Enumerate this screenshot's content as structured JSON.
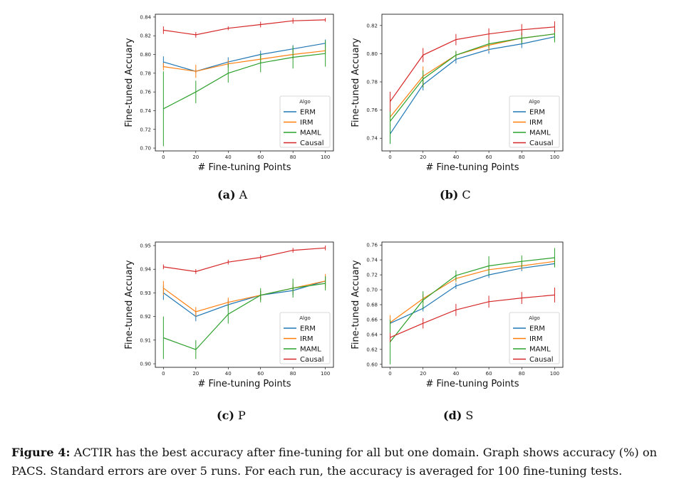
{
  "series_colors": {
    "ERM": "#1f77b4",
    "IRM": "#ff7f0e",
    "MAML": "#2ca02c",
    "Causal": "#d62728"
  },
  "chart_data": [
    {
      "id": "A",
      "type": "line",
      "xlabel": "# Fine-tuning Points",
      "ylabel": "Fine-tuned Accuary",
      "x": [
        0,
        20,
        40,
        60,
        80,
        100
      ],
      "xlim": [
        -5,
        105
      ],
      "ylim": [
        0.697,
        0.843
      ],
      "xticks": [
        0,
        20,
        40,
        60,
        80,
        100
      ],
      "yticks": [
        0.7,
        0.72,
        0.74,
        0.76,
        0.78,
        0.8,
        0.82,
        0.84
      ],
      "yticklabels": [
        "0.70",
        "0.72",
        "0.74",
        "0.76",
        "0.78",
        "0.80",
        "0.82",
        "0.84"
      ],
      "legend": {
        "title": "Algo",
        "position": "lower-right"
      },
      "series": [
        {
          "name": "ERM",
          "values": [
            0.792,
            0.782,
            0.792,
            0.8,
            0.806,
            0.812
          ],
          "err": [
            0.006,
            0.002,
            0.005,
            0.004,
            0.004,
            0.004
          ]
        },
        {
          "name": "IRM",
          "values": [
            0.787,
            0.782,
            0.79,
            0.795,
            0.8,
            0.804
          ],
          "err": [
            0.004,
            0.007,
            0.004,
            0.004,
            0.005,
            0.004
          ]
        },
        {
          "name": "MAML",
          "values": [
            0.742,
            0.76,
            0.78,
            0.791,
            0.797,
            0.801
          ],
          "err": [
            0.04,
            0.012,
            0.01,
            0.01,
            0.012,
            0.014
          ]
        },
        {
          "name": "Causal",
          "values": [
            0.826,
            0.821,
            0.828,
            0.832,
            0.836,
            0.837
          ],
          "err": [
            0.004,
            0.003,
            0.002,
            0.003,
            0.003,
            0.002
          ]
        }
      ]
    },
    {
      "id": "C",
      "type": "line",
      "xlabel": "# Fine-tuning Points",
      "ylabel": "Fine-tuned Accuary",
      "x": [
        0,
        20,
        40,
        60,
        80,
        100
      ],
      "xlim": [
        -5,
        105
      ],
      "ylim": [
        0.731,
        0.828
      ],
      "xticks": [
        0,
        20,
        40,
        60,
        80,
        100
      ],
      "yticks": [
        0.74,
        0.76,
        0.78,
        0.8,
        0.82
      ],
      "yticklabels": [
        "0.74",
        "0.76",
        "0.78",
        "0.80",
        "0.82"
      ],
      "legend": {
        "title": "Algo",
        "position": "lower-right"
      },
      "series": [
        {
          "name": "ERM",
          "values": [
            0.743,
            0.778,
            0.796,
            0.803,
            0.807,
            0.812
          ],
          "err": [
            0.007,
            0.004,
            0.003,
            0.003,
            0.003,
            0.003
          ]
        },
        {
          "name": "IRM",
          "values": [
            0.755,
            0.784,
            0.799,
            0.806,
            0.811,
            0.814
          ],
          "err": [
            0.006,
            0.007,
            0.003,
            0.004,
            0.003,
            0.004
          ]
        },
        {
          "name": "MAML",
          "values": [
            0.752,
            0.782,
            0.799,
            0.807,
            0.811,
            0.814
          ],
          "err": [
            0.016,
            0.006,
            0.003,
            0.003,
            0.004,
            0.006
          ]
        },
        {
          "name": "Causal",
          "values": [
            0.766,
            0.799,
            0.81,
            0.814,
            0.817,
            0.819
          ],
          "err": [
            0.007,
            0.005,
            0.004,
            0.004,
            0.004,
            0.004
          ]
        }
      ]
    },
    {
      "id": "P",
      "type": "line",
      "xlabel": "# Fine-tuning Points",
      "ylabel": "Fine-tuned Accuary",
      "x": [
        0,
        20,
        40,
        60,
        80,
        100
      ],
      "xlim": [
        -5,
        105
      ],
      "ylim": [
        0.8985,
        0.9515
      ],
      "xticks": [
        0,
        20,
        40,
        60,
        80,
        100
      ],
      "yticks": [
        0.9,
        0.91,
        0.92,
        0.93,
        0.94,
        0.95
      ],
      "yticklabels": [
        "0.90",
        "0.91",
        "0.92",
        "0.93",
        "0.94",
        "0.95"
      ],
      "legend": {
        "title": "Algo",
        "position": "lower-right"
      },
      "series": [
        {
          "name": "ERM",
          "values": [
            0.93,
            0.92,
            0.925,
            0.929,
            0.931,
            0.935
          ],
          "err": [
            0.003,
            0.002,
            0.002,
            0.002,
            0.002,
            0.002
          ]
        },
        {
          "name": "IRM",
          "values": [
            0.932,
            0.922,
            0.926,
            0.929,
            0.932,
            0.935
          ],
          "err": [
            0.003,
            0.002,
            0.002,
            0.002,
            0.002,
            0.003
          ]
        },
        {
          "name": "MAML",
          "values": [
            0.911,
            0.906,
            0.921,
            0.929,
            0.932,
            0.934
          ],
          "err": [
            0.009,
            0.004,
            0.004,
            0.003,
            0.004,
            0.003
          ]
        },
        {
          "name": "Causal",
          "values": [
            0.941,
            0.939,
            0.943,
            0.945,
            0.948,
            0.949
          ],
          "err": [
            0.001,
            0.001,
            0.001,
            0.001,
            0.001,
            0.001
          ]
        }
      ]
    },
    {
      "id": "S",
      "type": "line",
      "xlabel": "# Fine-tuning Points",
      "ylabel": "Fine-tuned Accuary",
      "x": [
        0,
        20,
        40,
        60,
        80,
        100
      ],
      "xlim": [
        -5,
        105
      ],
      "ylim": [
        0.596,
        0.764
      ],
      "xticks": [
        0,
        20,
        40,
        60,
        80,
        100
      ],
      "yticks": [
        0.6,
        0.62,
        0.64,
        0.66,
        0.68,
        0.7,
        0.72,
        0.74,
        0.76
      ],
      "yticklabels": [
        "0.60",
        "0.62",
        "0.64",
        "0.66",
        "0.68",
        "0.70",
        "0.72",
        "0.74",
        "0.76"
      ],
      "legend": {
        "title": "Algo",
        "position": "lower-right"
      },
      "series": [
        {
          "name": "ERM",
          "values": [
            0.655,
            0.675,
            0.705,
            0.72,
            0.729,
            0.735
          ],
          "err": [
            0.004,
            0.004,
            0.004,
            0.004,
            0.004,
            0.004
          ]
        },
        {
          "name": "IRM",
          "values": [
            0.656,
            0.688,
            0.715,
            0.727,
            0.732,
            0.738
          ],
          "err": [
            0.01,
            0.006,
            0.005,
            0.005,
            0.005,
            0.005
          ]
        },
        {
          "name": "MAML",
          "values": [
            0.63,
            0.686,
            0.719,
            0.732,
            0.738,
            0.743
          ],
          "err": [
            0.03,
            0.012,
            0.007,
            0.013,
            0.008,
            0.013
          ]
        },
        {
          "name": "Causal",
          "values": [
            0.636,
            0.655,
            0.673,
            0.684,
            0.689,
            0.693
          ],
          "err": [
            0.006,
            0.007,
            0.008,
            0.008,
            0.008,
            0.01
          ]
        }
      ]
    }
  ],
  "subcaptions": [
    {
      "letter": "(a)",
      "name": "A"
    },
    {
      "letter": "(b)",
      "name": "C"
    },
    {
      "letter": "(c)",
      "name": "P"
    },
    {
      "letter": "(d)",
      "name": "S"
    }
  ],
  "caption": {
    "label": "Figure 4:",
    "text": "ACTIR has the best accuracy after fine-tuning for all but one domain. Graph shows accuracy (%) on PACS. Standard errors are over 5 runs. For each run, the accuracy is averaged for 100 fine-tuning tests."
  }
}
